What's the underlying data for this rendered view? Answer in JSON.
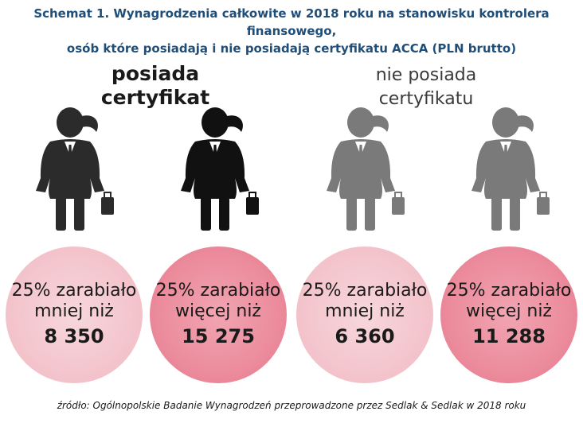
{
  "chart_data": {
    "type": "infographic",
    "title_line1": "Schemat 1. Wynagrodzenia całkowite w 2018 roku na stanowisku kontrolera finansowego,",
    "title_line2": "osób które posiadają i nie posiadają certyfikatu ACCA (PLN brutto)",
    "groups": [
      {
        "label_line1": "posiada",
        "label_line2": "certyfikat",
        "items": [
          {
            "line1": "25% zarabiało",
            "line2": "mniej niż",
            "value": "8 350",
            "color": "#f3c2ca",
            "figure_color": "#2b2b2b"
          },
          {
            "line1": "25% zarabiało",
            "line2": "więcej niż",
            "value": "15 275",
            "color": "#eb8a9b",
            "figure_color": "#111111"
          }
        ]
      },
      {
        "label_line1": "nie posiada",
        "label_line2": "certyfikatu",
        "items": [
          {
            "line1": "25% zarabiało",
            "line2": "mniej niż",
            "value": "6 360",
            "color": "#f3c2ca",
            "figure_color": "#7a7a7a"
          },
          {
            "line1": "25% zarabiało",
            "line2": "więcej niż",
            "value": "11 288",
            "color": "#eb8a9b",
            "figure_color": "#7a7a7a"
          }
        ]
      }
    ],
    "source": "źródło: Ogólnopolskie Badanie Wynagrodzeń przeprowadzone przez Sedlak & Sedlak w 2018 roku"
  },
  "icons": {
    "figure": "businesswoman-icon"
  }
}
